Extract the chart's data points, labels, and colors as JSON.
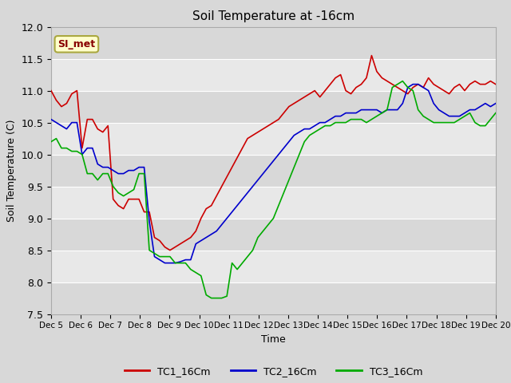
{
  "title": "Soil Temperature at -16cm",
  "xlabel": "Time",
  "ylabel": "Soil Temperature (C)",
  "ylim": [
    7.5,
    12.0
  ],
  "series_colors": [
    "#cc0000",
    "#0000cc",
    "#00aa00"
  ],
  "series_names": [
    "TC1_16Cm",
    "TC2_16Cm",
    "TC3_16Cm"
  ],
  "xtick_labels": [
    "Dec 5",
    "Dec 6",
    "Dec 7",
    "Dec 8",
    "Dec 9",
    "Dec 10",
    "Dec 11",
    "Dec 12",
    "Dec 13",
    "Dec 14",
    "Dec 15",
    "Dec 16",
    "Dec 17",
    "Dec 18",
    "Dec 19",
    "Dec 20"
  ],
  "watermark": "SI_met",
  "tc1": [
    11.0,
    10.85,
    10.75,
    10.8,
    10.95,
    11.0,
    10.1,
    10.55,
    10.55,
    10.4,
    10.35,
    10.45,
    9.3,
    9.2,
    9.15,
    9.3,
    9.3,
    9.3,
    9.1,
    9.1,
    8.7,
    8.65,
    8.55,
    8.5,
    8.55,
    8.6,
    8.65,
    8.7,
    8.8,
    9.0,
    9.15,
    9.2,
    9.35,
    9.5,
    9.65,
    9.8,
    9.95,
    10.1,
    10.25,
    10.3,
    10.35,
    10.4,
    10.45,
    10.5,
    10.55,
    10.65,
    10.75,
    10.8,
    10.85,
    10.9,
    10.95,
    11.0,
    10.9,
    11.0,
    11.1,
    11.2,
    11.25,
    11.0,
    10.95,
    11.05,
    11.1,
    11.2,
    11.55,
    11.3,
    11.2,
    11.15,
    11.1,
    11.05,
    11.0,
    10.95,
    11.05,
    11.1,
    11.05,
    11.2,
    11.1,
    11.05,
    11.0,
    10.95,
    11.05,
    11.1,
    11.0,
    11.1,
    11.15,
    11.1,
    11.1,
    11.15,
    11.1
  ],
  "tc2": [
    10.55,
    10.5,
    10.45,
    10.4,
    10.5,
    10.5,
    10.0,
    10.1,
    10.1,
    9.85,
    9.8,
    9.8,
    9.75,
    9.7,
    9.7,
    9.75,
    9.75,
    9.8,
    9.8,
    8.95,
    8.4,
    8.35,
    8.3,
    8.3,
    8.3,
    8.32,
    8.35,
    8.35,
    8.6,
    8.65,
    8.7,
    8.75,
    8.8,
    8.9,
    9.0,
    9.1,
    9.2,
    9.3,
    9.4,
    9.5,
    9.6,
    9.7,
    9.8,
    9.9,
    10.0,
    10.1,
    10.2,
    10.3,
    10.35,
    10.4,
    10.4,
    10.45,
    10.5,
    10.5,
    10.55,
    10.6,
    10.6,
    10.65,
    10.65,
    10.65,
    10.7,
    10.7,
    10.7,
    10.7,
    10.65,
    10.7,
    10.7,
    10.7,
    10.8,
    11.05,
    11.1,
    11.1,
    11.05,
    11.0,
    10.8,
    10.7,
    10.65,
    10.6,
    10.6,
    10.6,
    10.65,
    10.7,
    10.7,
    10.75,
    10.8,
    10.75,
    10.8
  ],
  "tc3": [
    10.2,
    10.25,
    10.1,
    10.1,
    10.05,
    10.05,
    10.0,
    9.7,
    9.7,
    9.6,
    9.7,
    9.7,
    9.5,
    9.4,
    9.35,
    9.4,
    9.45,
    9.7,
    9.7,
    8.5,
    8.45,
    8.4,
    8.4,
    8.4,
    8.3,
    8.3,
    8.3,
    8.2,
    8.15,
    8.1,
    7.8,
    7.75,
    7.75,
    7.75,
    7.78,
    8.3,
    8.2,
    8.3,
    8.4,
    8.5,
    8.7,
    8.8,
    8.9,
    9.0,
    9.2,
    9.4,
    9.6,
    9.8,
    10.0,
    10.2,
    10.3,
    10.35,
    10.4,
    10.45,
    10.45,
    10.5,
    10.5,
    10.5,
    10.55,
    10.55,
    10.55,
    10.5,
    10.55,
    10.6,
    10.65,
    10.7,
    11.05,
    11.1,
    11.15,
    11.05,
    11.0,
    10.7,
    10.6,
    10.55,
    10.5,
    10.5,
    10.5,
    10.5,
    10.5,
    10.55,
    10.6,
    10.65,
    10.5,
    10.45,
    10.45,
    10.55,
    10.65
  ]
}
